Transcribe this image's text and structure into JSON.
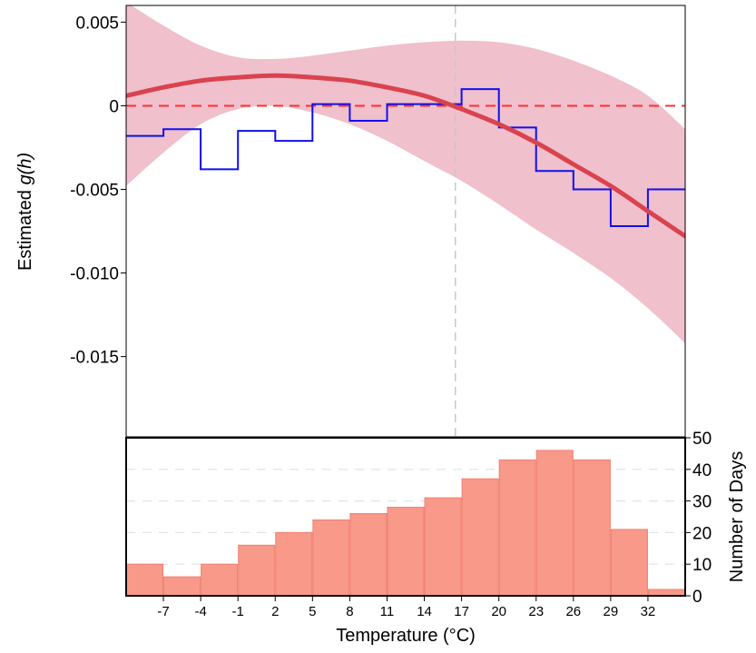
{
  "chart_data": [
    {
      "type": "line",
      "ylabel_prefix": "Estimated ",
      "ylabel_math": "g(h)",
      "yticks": [
        "0.005",
        "0",
        "-0.005",
        "-0.010",
        "-0.015"
      ],
      "ylim": [
        -0.0198,
        0.006
      ],
      "xlim": [
        -10,
        35
      ],
      "reference_hline": 0,
      "reference_vline": 16.5,
      "colors": {
        "fit": "#d9434f",
        "band": "#f0c0cc",
        "step": "#1010ee",
        "hline": "#ff3030",
        "vline": "#c8c8c8"
      },
      "series": [
        {
          "role": "fitted-curve",
          "x": [
            -10,
            -7,
            -4,
            -1,
            2,
            5,
            8,
            11,
            14,
            17,
            20,
            23,
            26,
            29,
            32,
            35
          ],
          "y": [
            0.0006,
            0.0011,
            0.0015,
            0.0017,
            0.0018,
            0.0017,
            0.0015,
            0.0011,
            0.0006,
            -0.0002,
            -0.0011,
            -0.0022,
            -0.0035,
            -0.0048,
            -0.0063,
            -0.0078
          ]
        },
        {
          "role": "confidence-band-upper",
          "x": [
            -10,
            -7,
            -4,
            -1,
            2,
            5,
            8,
            11,
            14,
            17,
            20,
            23,
            26,
            29,
            32,
            35
          ],
          "y": [
            0.0062,
            0.0048,
            0.0036,
            0.0029,
            0.0028,
            0.003,
            0.0033,
            0.0036,
            0.0038,
            0.0039,
            0.0038,
            0.0034,
            0.0027,
            0.0018,
            0.0006,
            -0.0014
          ]
        },
        {
          "role": "confidence-band-lower",
          "x": [
            -10,
            -7,
            -4,
            -1,
            2,
            5,
            8,
            11,
            14,
            17,
            20,
            23,
            26,
            29,
            32,
            35
          ],
          "y": [
            -0.0048,
            -0.0028,
            -0.0011,
            -0.0002,
            0.0,
            -0.0004,
            -0.0011,
            -0.0021,
            -0.0033,
            -0.0045,
            -0.0059,
            -0.0074,
            -0.0088,
            -0.0103,
            -0.0121,
            -0.0142
          ]
        },
        {
          "role": "binned-step",
          "bin_edges": [
            -10,
            -7,
            -4,
            -1,
            2,
            5,
            8,
            11,
            14,
            17,
            20,
            23,
            26,
            29,
            32,
            35
          ],
          "values": [
            -0.0018,
            -0.0014,
            -0.0038,
            -0.0015,
            -0.0021,
            0.0001,
            -0.0009,
            0.0001,
            0.0001,
            0.001,
            -0.0013,
            -0.0039,
            -0.005,
            -0.0072,
            -0.005
          ]
        }
      ]
    },
    {
      "type": "bar",
      "xlabel": "Temperature (°C)",
      "ylabel": "Number of Days",
      "xticks": [
        "-7",
        "-4",
        "-1",
        "2",
        "5",
        "8",
        "11",
        "14",
        "17",
        "20",
        "23",
        "26",
        "29",
        "32"
      ],
      "yticks": [
        "0",
        "10",
        "20",
        "30",
        "40",
        "50"
      ],
      "ylim": [
        0,
        50
      ],
      "grid": true,
      "bar_color": "#f8998a",
      "bin_edges": [
        -10,
        -7,
        -4,
        -1,
        2,
        5,
        8,
        11,
        14,
        17,
        20,
        23,
        26,
        29,
        32,
        35
      ],
      "values": [
        10,
        6,
        10,
        16,
        20,
        24,
        26,
        28,
        31,
        37,
        43,
        46,
        43,
        21,
        2
      ]
    }
  ]
}
